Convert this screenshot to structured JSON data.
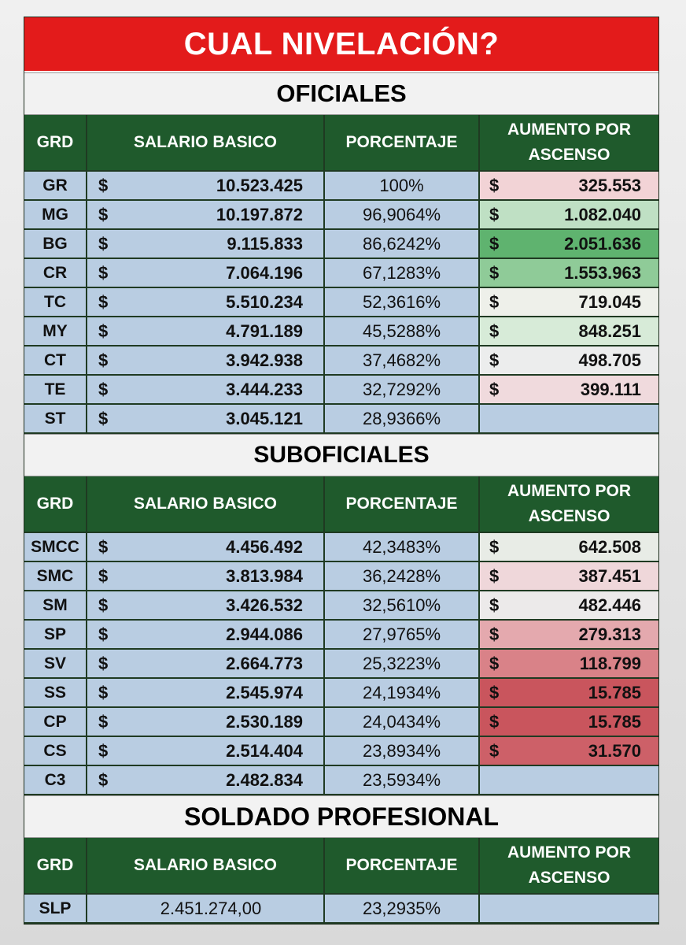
{
  "title": "CUAL NIVELACIÓN?",
  "currency_symbol": "$",
  "headers": {
    "grd": "GRD",
    "salario": "SALARIO BASICO",
    "porcentaje": "PORCENTAJE",
    "aumento_line1": "AUMENTO POR",
    "aumento_line2": "ASCENSO"
  },
  "sections": [
    {
      "title": "OFICIALES",
      "rows": [
        {
          "grd": "GR",
          "salario": "10.523.425",
          "porcentaje": "100%",
          "aumento": "325.553",
          "aumento_color": "#f2d3d6"
        },
        {
          "grd": "MG",
          "salario": "10.197.872",
          "porcentaje": "96,9064%",
          "aumento": "1.082.040",
          "aumento_color": "#bfe0c4"
        },
        {
          "grd": "BG",
          "salario": "9.115.833",
          "porcentaje": "86,6242%",
          "aumento": "2.051.636",
          "aumento_color": "#5fb36f"
        },
        {
          "grd": "CR",
          "salario": "7.064.196",
          "porcentaje": "67,1283%",
          "aumento": "1.553.963",
          "aumento_color": "#8fcb98"
        },
        {
          "grd": "TC",
          "salario": "5.510.234",
          "porcentaje": "52,3616%",
          "aumento": "719.045",
          "aumento_color": "#eef0ea"
        },
        {
          "grd": "MY",
          "salario": "4.791.189",
          "porcentaje": "45,5288%",
          "aumento": "848.251",
          "aumento_color": "#d7ebd8"
        },
        {
          "grd": "CT",
          "salario": "3.942.938",
          "porcentaje": "37,4682%",
          "aumento": "498.705",
          "aumento_color": "#eceded"
        },
        {
          "grd": "TE",
          "salario": "3.444.233",
          "porcentaje": "32,7292%",
          "aumento": "399.111",
          "aumento_color": "#f0dadd"
        },
        {
          "grd": "ST",
          "salario": "3.045.121",
          "porcentaje": "28,9366%",
          "aumento": "",
          "aumento_color": "#b9cde2"
        }
      ]
    },
    {
      "title": "SUBOFICIALES",
      "rows": [
        {
          "grd": "SMCC",
          "salario": "4.456.492",
          "porcentaje": "42,3483%",
          "aumento": "642.508",
          "aumento_color": "#e8ece6"
        },
        {
          "grd": "SMC",
          "salario": "3.813.984",
          "porcentaje": "36,2428%",
          "aumento": "387.451",
          "aumento_color": "#efd7da"
        },
        {
          "grd": "SM",
          "salario": "3.426.532",
          "porcentaje": "32,5610%",
          "aumento": "482.446",
          "aumento_color": "#eceaea"
        },
        {
          "grd": "SP",
          "salario": "2.944.086",
          "porcentaje": "27,9765%",
          "aumento": "279.313",
          "aumento_color": "#e4a9ae"
        },
        {
          "grd": "SV",
          "salario": "2.664.773",
          "porcentaje": "25,3223%",
          "aumento": "118.799",
          "aumento_color": "#d98288"
        },
        {
          "grd": "SS",
          "salario": "2.545.974",
          "porcentaje": "24,1934%",
          "aumento": "15.785",
          "aumento_color": "#c9555d"
        },
        {
          "grd": "CP",
          "salario": "2.530.189",
          "porcentaje": "24,0434%",
          "aumento": "15.785",
          "aumento_color": "#c9555d"
        },
        {
          "grd": "CS",
          "salario": "2.514.404",
          "porcentaje": "23,8934%",
          "aumento": "31.570",
          "aumento_color": "#cd6068"
        },
        {
          "grd": "C3",
          "salario": "2.482.834",
          "porcentaje": "23,5934%",
          "aumento": "",
          "aumento_color": "#b9cde2"
        }
      ]
    },
    {
      "title": "SOLDADO PROFESIONAL",
      "rows": [
        {
          "grd": "SLP",
          "salario": "2.451.274,00",
          "porcentaje": "23,2935%",
          "aumento": "",
          "aumento_color": "#b9cde2"
        }
      ]
    }
  ]
}
